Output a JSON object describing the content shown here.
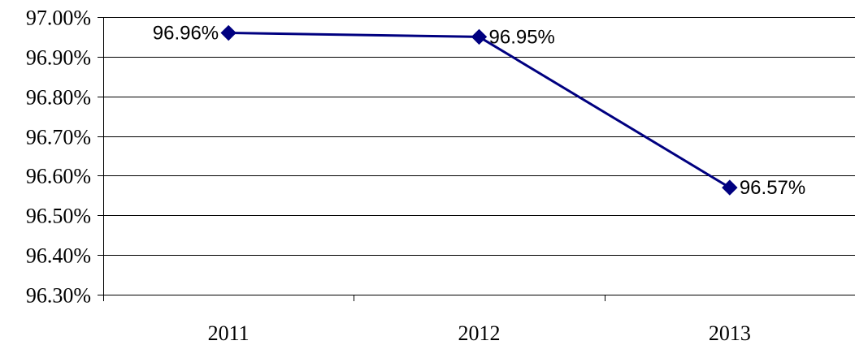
{
  "chart_data": {
    "type": "line",
    "categories": [
      "2011",
      "2012",
      "2013"
    ],
    "series": [
      {
        "values": [
          96.96,
          96.95,
          96.57
        ],
        "labels": [
          "96.96%",
          "96.95%",
          "96.57%"
        ],
        "color": "#000080",
        "marker": "diamond"
      }
    ],
    "ylim": [
      96.3,
      97.0
    ],
    "yticks": [
      97.0,
      96.9,
      96.8,
      96.7,
      96.6,
      96.5,
      96.4,
      96.3
    ],
    "ytick_labels": [
      "97.00%",
      "96.90%",
      "96.80%",
      "96.70%",
      "96.60%",
      "96.50%",
      "96.40%",
      "96.30%"
    ],
    "grid": true,
    "gridline_color": "#000000",
    "label_positions": [
      "left",
      "right",
      "right"
    ]
  }
}
